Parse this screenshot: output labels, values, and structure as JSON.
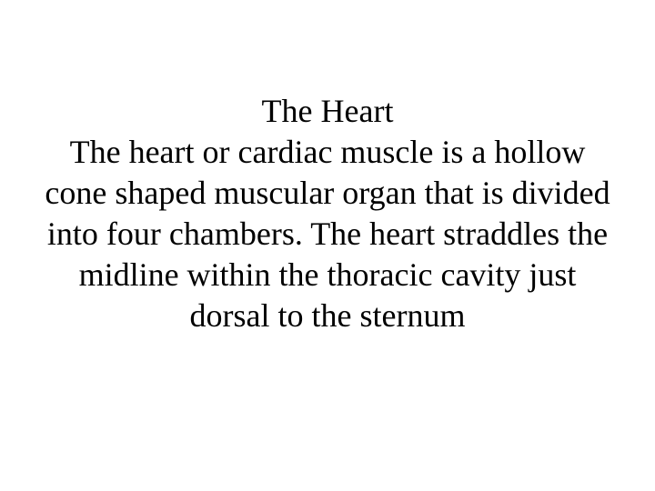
{
  "slide": {
    "title": "The Heart",
    "body": "The heart or cardiac muscle is a hollow cone shaped muscular organ that is divided into four chambers.  The heart straddles the midline within the thoracic cavity just dorsal to the sternum",
    "background_color": "#ffffff",
    "text_color": "#000000",
    "font_family": "Times New Roman",
    "title_fontsize": 36,
    "body_fontsize": 36,
    "text_align": "center",
    "line_height": 1.25
  }
}
